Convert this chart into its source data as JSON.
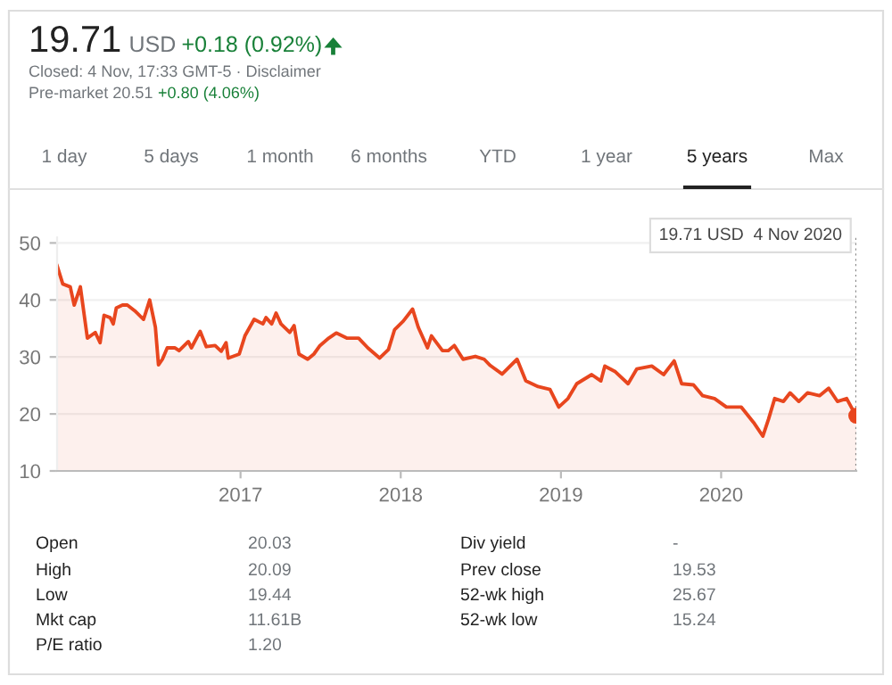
{
  "chart_data": {
    "type": "area",
    "title": "19.71",
    "x": [
      "2015-11-10",
      "2015-11-23",
      "2015-12-10",
      "2015-12-19",
      "2016-01-02",
      "2016-01-18",
      "2016-02-05",
      "2016-02-16",
      "2016-02-25",
      "2016-03-10",
      "2016-03-17",
      "2016-03-24",
      "2016-04-07",
      "2016-04-18",
      "2016-05-05",
      "2016-05-25",
      "2016-06-08",
      "2016-06-21",
      "2016-06-28",
      "2016-07-07",
      "2016-07-18",
      "2016-08-04",
      "2016-08-14",
      "2016-09-04",
      "2016-09-11",
      "2016-10-01",
      "2016-10-15",
      "2016-11-04",
      "2016-11-18",
      "2016-11-29",
      "2016-12-04",
      "2016-12-29",
      "2017-01-11",
      "2017-02-01",
      "2017-02-21",
      "2017-02-28",
      "2017-03-13",
      "2017-03-23",
      "2017-04-03",
      "2017-04-23",
      "2017-05-03",
      "2017-05-14",
      "2017-06-03",
      "2017-06-17",
      "2017-07-01",
      "2017-07-21",
      "2017-08-07",
      "2017-08-31",
      "2017-09-27",
      "2017-10-18",
      "2017-11-14",
      "2017-12-04",
      "2017-12-18",
      "2018-01-07",
      "2018-01-28",
      "2018-02-10",
      "2018-03-03",
      "2018-03-12",
      "2018-04-06",
      "2018-04-19",
      "2018-05-03",
      "2018-05-23",
      "2018-06-20",
      "2018-07-10",
      "2018-07-24",
      "2018-08-20",
      "2018-09-23",
      "2018-10-13",
      "2018-11-10",
      "2018-12-07",
      "2018-12-27",
      "2019-01-17",
      "2019-02-06",
      "2019-03-12",
      "2019-04-02",
      "2019-04-11",
      "2019-05-05",
      "2019-06-03",
      "2019-06-23",
      "2019-07-27",
      "2019-08-23",
      "2019-09-16",
      "2019-10-03",
      "2019-10-30",
      "2019-11-20",
      "2019-12-17",
      "2020-01-13",
      "2020-02-16",
      "2020-03-15",
      "2020-04-05",
      "2020-04-18",
      "2020-05-02",
      "2020-05-22",
      "2020-06-06",
      "2020-06-26",
      "2020-07-16",
      "2020-08-12",
      "2020-09-02",
      "2020-09-22",
      "2020-10-13",
      "2020-10-27",
      "2020-11-04"
    ],
    "series": [
      {
        "color": "#e8461e",
        "values": [
          46,
          42.8,
          42.3,
          39.1,
          42.3,
          33.3,
          34.3,
          32.5,
          37.3,
          36.9,
          35.8,
          38.6,
          39.1,
          39.1,
          38.1,
          36.6,
          40,
          35.2,
          28.6,
          29.6,
          31.6,
          31.6,
          31.1,
          32.7,
          31.6,
          34.5,
          31.8,
          32,
          31,
          32.5,
          29.8,
          30.5,
          33.7,
          36.6,
          35.8,
          36.9,
          35.8,
          37.7,
          35.8,
          34.3,
          35.5,
          30.5,
          29.6,
          30.5,
          32,
          33.3,
          34.2,
          33.3,
          33.3,
          31.6,
          29.8,
          31.3,
          34.8,
          36.3,
          38.4,
          35.2,
          31.6,
          33.7,
          31.1,
          31.1,
          32,
          29.6,
          30.1,
          29.6,
          28.5,
          27,
          29.6,
          25.8,
          24.8,
          24.3,
          21.2,
          22.7,
          25.3,
          26.9,
          25.8,
          28.4,
          27.4,
          25.3,
          27.9,
          28.4,
          26.9,
          29.3,
          25.3,
          25.1,
          23.2,
          22.7,
          21.2,
          21.2,
          18.5,
          16.1,
          19.1,
          22.7,
          22.2,
          23.7,
          22.2,
          23.7,
          23.2,
          24.5,
          22.2,
          22.7,
          20.7,
          19.7
        ]
      },
      {
        "type": "scatter",
        "color": "#e8461e",
        "x": [
          "2020-11-04"
        ],
        "values": [
          19.7
        ],
        "marker": "circle"
      }
    ],
    "xlim": [
      "2015-11-10",
      "2020-11-04"
    ],
    "xticks": [
      {
        "value": "2017-01-01",
        "label": "2017"
      },
      {
        "value": "2018-01-01",
        "label": "2018"
      },
      {
        "value": "2019-01-01",
        "label": "2019"
      },
      {
        "value": "2020-01-01",
        "label": "2020"
      }
    ],
    "ylim": [
      10,
      51
    ],
    "yticks": [
      10,
      20,
      30,
      40,
      50
    ],
    "grid": "y",
    "ref_lines": [
      {
        "axis": "x",
        "value": "2020-11-04",
        "color": "#888888",
        "line_style": "dotted"
      }
    ],
    "annotations": [
      "USD",
      "+0.18 (0.92%)",
      "Closed: 4 Nov, 17:33 GMT-5 · Disclaimer",
      "Pre-market 20.51",
      "+0.80 (4.06%)",
      "1 day",
      "5 days",
      "1 month",
      "6 months",
      "YTD",
      "1 year",
      "5 years",
      "Max",
      "Open",
      "20.03",
      "High",
      "20.09",
      "Low",
      "19.44",
      "Mkt cap",
      "11.61B",
      "P/E ratio",
      "1.20",
      "Div yield",
      "-",
      "Prev close",
      "19.53",
      "52-wk high",
      "25.67",
      "52-wk low",
      "15.24",
      "19.71 USD  4 Nov 2020"
    ]
  }
}
